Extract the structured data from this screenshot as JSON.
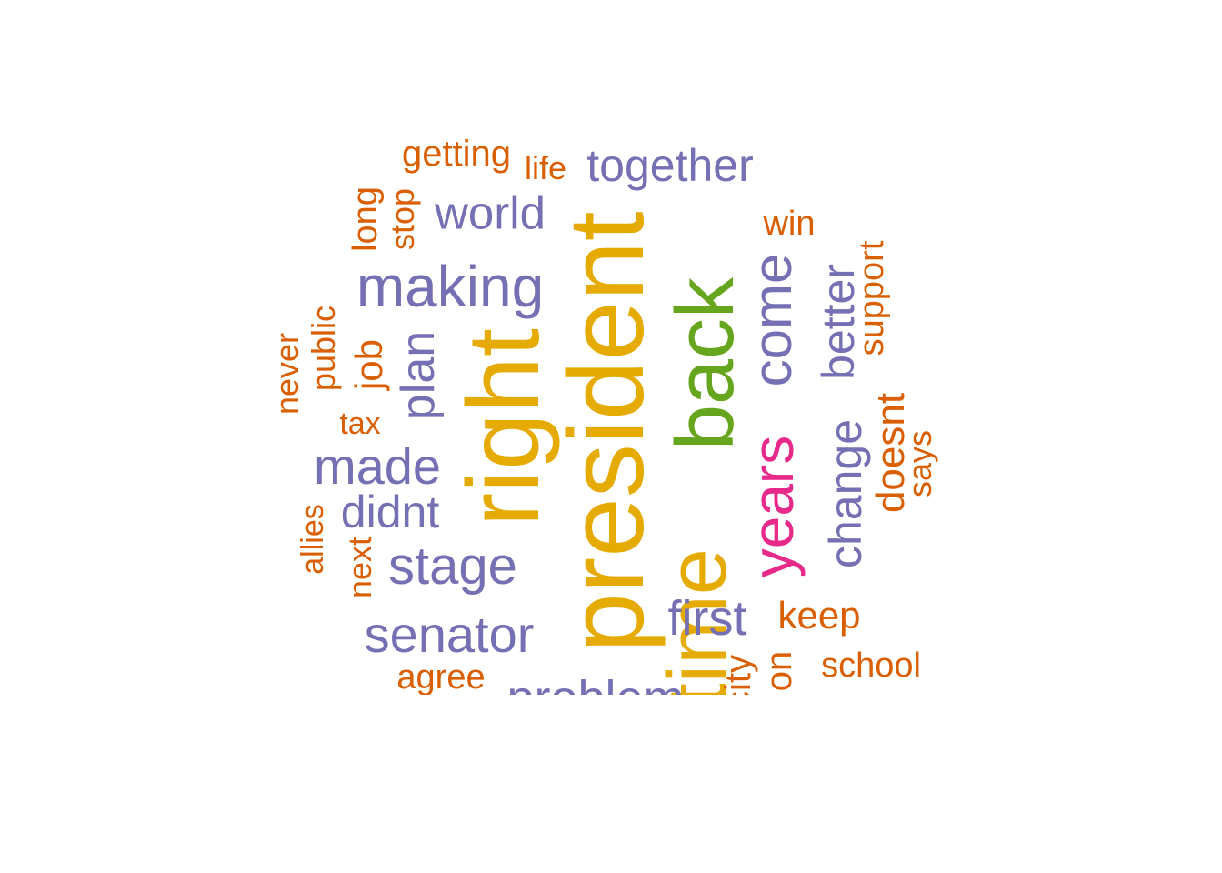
{
  "colors": {
    "gold": "#e6ab02",
    "green": "#66a61e",
    "magenta": "#e7298a",
    "purple": "#7570b3",
    "orange": "#d95f02"
  },
  "words": {
    "president": "president",
    "right": "right",
    "time": "time",
    "back": "back",
    "years": "years",
    "come": "come",
    "making": "making",
    "together": "together",
    "world": "world",
    "made": "made",
    "stage": "stage",
    "senator": "senator",
    "didnt": "didnt",
    "plan": "plan",
    "first": "first",
    "change": "change",
    "better": "better",
    "problem": "problem",
    "getting": "getting",
    "life": "life",
    "long": "long",
    "stop": "stop",
    "win": "win",
    "support": "support",
    "never": "never",
    "public": "public",
    "job": "job",
    "tax": "tax",
    "doesnt": "doesnt",
    "says": "says",
    "allies": "allies",
    "next": "next",
    "keep": "keep",
    "school": "school",
    "agree": "agree",
    "city": "city",
    "on": "on"
  }
}
